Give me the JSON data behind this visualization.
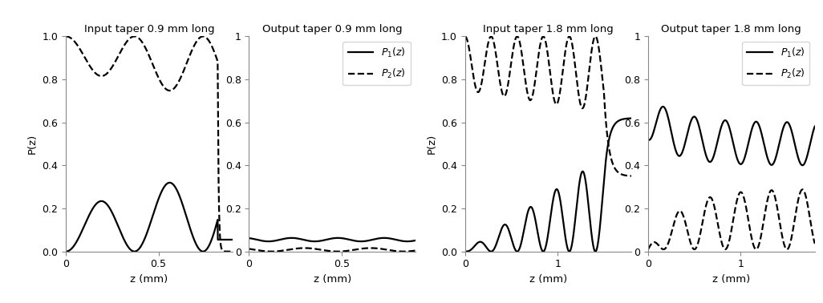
{
  "titles": [
    "Input taper 0.9 mm long",
    "Output taper 0.9 mm long",
    "Input taper 1.8 mm long",
    "Output taper 1.8 mm long"
  ],
  "xlabel": "z (mm)",
  "ylabel": "P(z)",
  "ylim": [
    0,
    1
  ],
  "background_color": "#ffffff",
  "line_color": "#000000",
  "title_fontsize": 9.5,
  "label_fontsize": 9.5,
  "tick_fontsize": 9,
  "lw_solid": 1.6,
  "lw_dashed": 1.6
}
